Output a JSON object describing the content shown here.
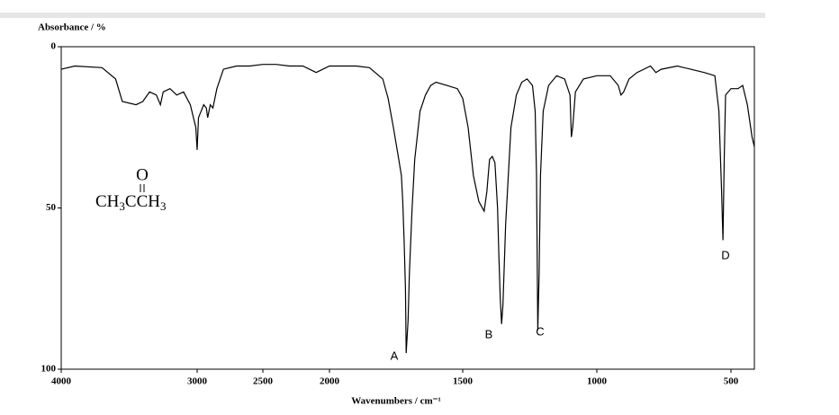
{
  "chart_data": {
    "type": "line",
    "y_label": "Absorbance / %",
    "x_label": "Wavenumbers / cm⁻¹",
    "xlim": [
      4000,
      400
    ],
    "xticks": [
      4000,
      3000,
      2500,
      2000,
      1500,
      1000,
      500
    ],
    "ylim": [
      0,
      100
    ],
    "yticks": [
      0,
      50,
      100
    ],
    "color": "#000000",
    "x": [
      4000,
      3900,
      3700,
      3600,
      3550,
      3450,
      3400,
      3350,
      3300,
      3270,
      3250,
      3200,
      3150,
      3100,
      3050,
      3010,
      3000,
      2990,
      2970,
      2950,
      2930,
      2920,
      2900,
      2880,
      2850,
      2800,
      2700,
      2600,
      2500,
      2400,
      2300,
      2200,
      2150,
      2100,
      2050,
      2000,
      1900,
      1850,
      1800,
      1780,
      1760,
      1740,
      1730,
      1725,
      1720,
      1715,
      1712,
      1705,
      1700,
      1690,
      1680,
      1660,
      1640,
      1620,
      1600,
      1560,
      1520,
      1500,
      1480,
      1460,
      1440,
      1420,
      1410,
      1400,
      1390,
      1380,
      1370,
      1365,
      1360,
      1355,
      1350,
      1340,
      1320,
      1300,
      1280,
      1260,
      1240,
      1230,
      1225,
      1220,
      1215,
      1210,
      1200,
      1180,
      1150,
      1120,
      1100,
      1095,
      1090,
      1080,
      1050,
      1000,
      950,
      920,
      910,
      900,
      880,
      850,
      800,
      780,
      760,
      700,
      650,
      600,
      560,
      545,
      535,
      530,
      525,
      520,
      500,
      470,
      450,
      430,
      410,
      400
    ],
    "values": [
      7,
      6,
      6.5,
      10,
      17,
      18,
      17,
      14,
      15,
      18,
      14,
      13,
      15,
      14,
      18,
      25,
      32,
      22,
      20,
      18,
      19,
      22,
      18,
      19,
      13,
      7,
      6,
      6,
      5.5,
      5.5,
      6,
      6,
      7,
      8,
      7,
      6,
      6,
      6.5,
      10,
      16,
      25,
      35,
      40,
      48,
      60,
      75,
      95,
      85,
      70,
      50,
      35,
      20,
      15,
      12,
      11,
      12,
      13,
      16,
      25,
      40,
      48,
      51,
      45,
      35,
      34,
      36,
      50,
      65,
      78,
      86,
      80,
      55,
      25,
      15,
      11,
      10,
      12,
      20,
      40,
      88,
      70,
      40,
      20,
      12,
      9,
      10,
      15,
      28,
      25,
      14,
      10,
      9,
      9,
      12,
      15,
      14,
      10,
      8,
      6,
      8,
      7,
      6,
      7,
      8,
      9,
      20,
      45,
      60,
      35,
      15,
      13,
      13,
      12,
      18,
      28,
      31
    ],
    "annotations": [
      "A",
      "B",
      "C",
      "D"
    ],
    "molecule": {
      "carbonyl": "O",
      "parts": [
        "CH",
        "3",
        "C",
        "CH",
        "3"
      ]
    }
  }
}
